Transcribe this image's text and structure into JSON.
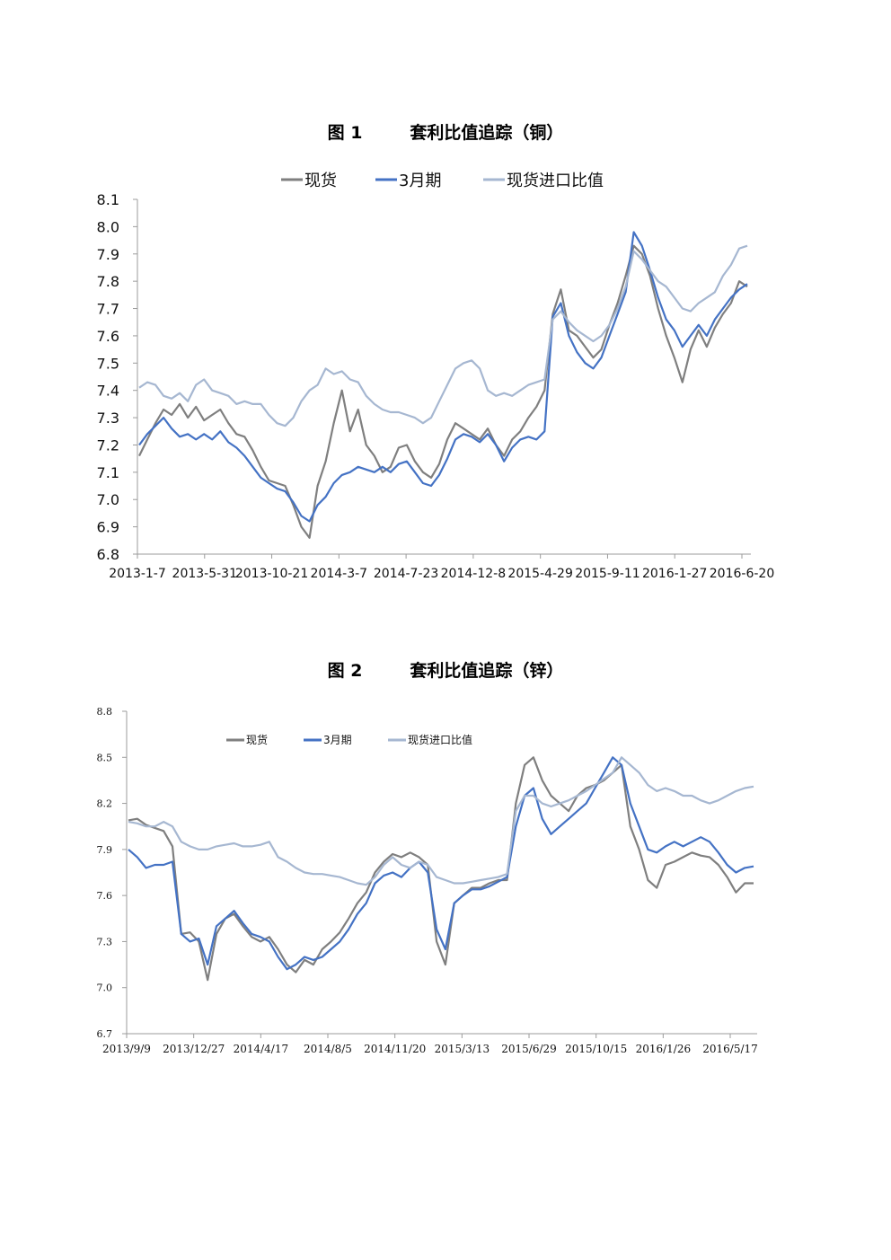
{
  "chart_data": [
    {
      "type": "line",
      "title": "图 1        套利比值追踪（铜）",
      "xlabel": "",
      "ylabel": "",
      "ylim": [
        6.8,
        8.1
      ],
      "yticks": [
        "8.1",
        "8.0",
        "7.9",
        "7.8",
        "7.7",
        "7.6",
        "7.5",
        "7.4",
        "7.3",
        "7.2",
        "7.1",
        "7.0",
        "6.9",
        "6.8"
      ],
      "xticks": [
        "2013-1-7",
        "2013-5-31",
        "2013-10-21",
        "2014-3-7",
        "2014-7-23",
        "2014-12-8",
        "2015-4-29",
        "2015-9-11",
        "2016-1-27",
        "2016-6-20"
      ],
      "legend_position": "top",
      "grid": false,
      "series": [
        {
          "name": "现货",
          "color": "#7f7f7f",
          "values": [
            7.16,
            7.22,
            7.28,
            7.33,
            7.31,
            7.35,
            7.3,
            7.34,
            7.29,
            7.31,
            7.33,
            7.28,
            7.24,
            7.23,
            7.18,
            7.12,
            7.07,
            7.06,
            7.05,
            6.98,
            6.9,
            6.86,
            7.05,
            7.14,
            7.28,
            7.4,
            7.25,
            7.33,
            7.2,
            7.16,
            7.1,
            7.12,
            7.19,
            7.2,
            7.14,
            7.1,
            7.08,
            7.13,
            7.22,
            7.28,
            7.26,
            7.24,
            7.22,
            7.26,
            7.2,
            7.16,
            7.22,
            7.25,
            7.3,
            7.34,
            7.4,
            7.68,
            7.77,
            7.62,
            7.6,
            7.56,
            7.52,
            7.55,
            7.64,
            7.72,
            7.82,
            7.93,
            7.9,
            7.82,
            7.7,
            7.6,
            7.52,
            7.43,
            7.55,
            7.62,
            7.56,
            7.63,
            7.68,
            7.72,
            7.8,
            7.78
          ]
        },
        {
          "name": "3月期",
          "color": "#4472c4",
          "values": [
            7.2,
            7.24,
            7.27,
            7.3,
            7.26,
            7.23,
            7.24,
            7.22,
            7.24,
            7.22,
            7.25,
            7.21,
            7.19,
            7.16,
            7.12,
            7.08,
            7.06,
            7.04,
            7.03,
            6.99,
            6.94,
            6.92,
            6.98,
            7.01,
            7.06,
            7.09,
            7.1,
            7.12,
            7.11,
            7.1,
            7.12,
            7.1,
            7.13,
            7.14,
            7.1,
            7.06,
            7.05,
            7.09,
            7.15,
            7.22,
            7.24,
            7.23,
            7.21,
            7.24,
            7.2,
            7.14,
            7.19,
            7.22,
            7.23,
            7.22,
            7.25,
            7.67,
            7.72,
            7.6,
            7.54,
            7.5,
            7.48,
            7.52,
            7.6,
            7.68,
            7.76,
            7.98,
            7.93,
            7.84,
            7.74,
            7.66,
            7.62,
            7.56,
            7.6,
            7.64,
            7.6,
            7.66,
            7.7,
            7.74,
            7.77,
            7.79
          ]
        },
        {
          "name": "现货进口比值",
          "color": "#a6b7d1",
          "values": [
            7.41,
            7.43,
            7.42,
            7.38,
            7.37,
            7.39,
            7.36,
            7.42,
            7.44,
            7.4,
            7.39,
            7.38,
            7.35,
            7.36,
            7.35,
            7.35,
            7.31,
            7.28,
            7.27,
            7.3,
            7.36,
            7.4,
            7.42,
            7.48,
            7.46,
            7.47,
            7.44,
            7.43,
            7.38,
            7.35,
            7.33,
            7.32,
            7.32,
            7.31,
            7.3,
            7.28,
            7.3,
            7.36,
            7.42,
            7.48,
            7.5,
            7.51,
            7.48,
            7.4,
            7.38,
            7.39,
            7.38,
            7.4,
            7.42,
            7.43,
            7.44,
            7.66,
            7.69,
            7.65,
            7.62,
            7.6,
            7.58,
            7.6,
            7.64,
            7.7,
            7.78,
            7.91,
            7.88,
            7.84,
            7.8,
            7.78,
            7.74,
            7.7,
            7.69,
            7.72,
            7.74,
            7.76,
            7.82,
            7.86,
            7.92,
            7.93
          ]
        }
      ]
    },
    {
      "type": "line",
      "title": "图 2        套利比值追踪（锌）",
      "xlabel": "",
      "ylabel": "",
      "ylim": [
        6.7,
        8.8
      ],
      "yticks": [
        "8.8",
        "8.5",
        "8.2",
        "7.9",
        "7.6",
        "7.3",
        "7.0",
        "6.7"
      ],
      "xticks": [
        "2013/9/9",
        "2013/12/27",
        "2014/4/17",
        "2014/8/5",
        "2014/11/20",
        "2015/3/13",
        "2015/6/29",
        "2015/10/15",
        "2016/1/26",
        "2016/5/17"
      ],
      "legend_position": "top-left",
      "grid": false,
      "series": [
        {
          "name": "现货",
          "color": "#7f7f7f",
          "values": [
            8.09,
            8.1,
            8.06,
            8.04,
            8.02,
            7.92,
            7.35,
            7.36,
            7.3,
            7.05,
            7.35,
            7.45,
            7.48,
            7.4,
            7.33,
            7.3,
            7.33,
            7.25,
            7.15,
            7.1,
            7.18,
            7.15,
            7.25,
            7.3,
            7.36,
            7.45,
            7.55,
            7.62,
            7.75,
            7.82,
            7.87,
            7.85,
            7.88,
            7.85,
            7.8,
            7.3,
            7.15,
            7.55,
            7.6,
            7.65,
            7.65,
            7.68,
            7.7,
            7.7,
            8.2,
            8.45,
            8.5,
            8.35,
            8.25,
            8.2,
            8.15,
            8.25,
            8.3,
            8.32,
            8.35,
            8.4,
            8.45,
            8.05,
            7.9,
            7.7,
            7.65,
            7.8,
            7.82,
            7.85,
            7.88,
            7.86,
            7.85,
            7.8,
            7.72,
            7.62,
            7.68,
            7.68
          ]
        },
        {
          "name": "3月期",
          "color": "#4472c4",
          "values": [
            7.9,
            7.85,
            7.78,
            7.8,
            7.8,
            7.82,
            7.35,
            7.3,
            7.32,
            7.15,
            7.4,
            7.45,
            7.5,
            7.42,
            7.35,
            7.33,
            7.3,
            7.2,
            7.12,
            7.15,
            7.2,
            7.18,
            7.2,
            7.25,
            7.3,
            7.38,
            7.48,
            7.55,
            7.68,
            7.73,
            7.75,
            7.72,
            7.78,
            7.82,
            7.75,
            7.38,
            7.25,
            7.55,
            7.6,
            7.64,
            7.64,
            7.66,
            7.69,
            7.72,
            8.05,
            8.25,
            8.3,
            8.1,
            8.0,
            8.05,
            8.1,
            8.15,
            8.2,
            8.3,
            8.4,
            8.5,
            8.45,
            8.2,
            8.05,
            7.9,
            7.88,
            7.92,
            7.95,
            7.92,
            7.95,
            7.98,
            7.95,
            7.88,
            7.8,
            7.75,
            7.78,
            7.79
          ]
        },
        {
          "name": "现货进口比值",
          "color": "#a6b7d1",
          "values": [
            8.08,
            8.07,
            8.05,
            8.05,
            8.08,
            8.05,
            7.95,
            7.92,
            7.9,
            7.9,
            7.92,
            7.93,
            7.94,
            7.92,
            7.92,
            7.93,
            7.95,
            7.85,
            7.82,
            7.78,
            7.75,
            7.74,
            7.74,
            7.73,
            7.72,
            7.7,
            7.68,
            7.67,
            7.72,
            7.8,
            7.85,
            7.8,
            7.78,
            7.82,
            7.8,
            7.72,
            7.7,
            7.68,
            7.68,
            7.69,
            7.7,
            7.71,
            7.72,
            7.74,
            8.15,
            8.25,
            8.25,
            8.2,
            8.18,
            8.2,
            8.22,
            8.25,
            8.28,
            8.32,
            8.36,
            8.4,
            8.5,
            8.45,
            8.4,
            8.32,
            8.28,
            8.3,
            8.28,
            8.25,
            8.25,
            8.22,
            8.2,
            8.22,
            8.25,
            8.28,
            8.3,
            8.31
          ]
        }
      ]
    }
  ]
}
